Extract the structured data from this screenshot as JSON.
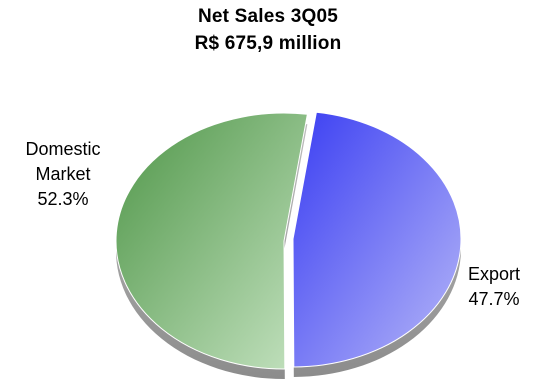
{
  "chart_data": {
    "type": "pie",
    "title": "Net Sales 3Q05",
    "subtitle": "R$ 675,9 million",
    "slices": [
      {
        "label_lines": [
          "Domestic",
          "Market"
        ],
        "value": 52.3,
        "value_label": "52.3%",
        "color": "#4f9648",
        "color_light": "#c4e2c0"
      },
      {
        "label_lines": [
          "Export"
        ],
        "value": 47.7,
        "value_label": "47.7%",
        "color": "#3a3ef2",
        "color_light": "#b7b8f8"
      }
    ],
    "legend": "none"
  }
}
